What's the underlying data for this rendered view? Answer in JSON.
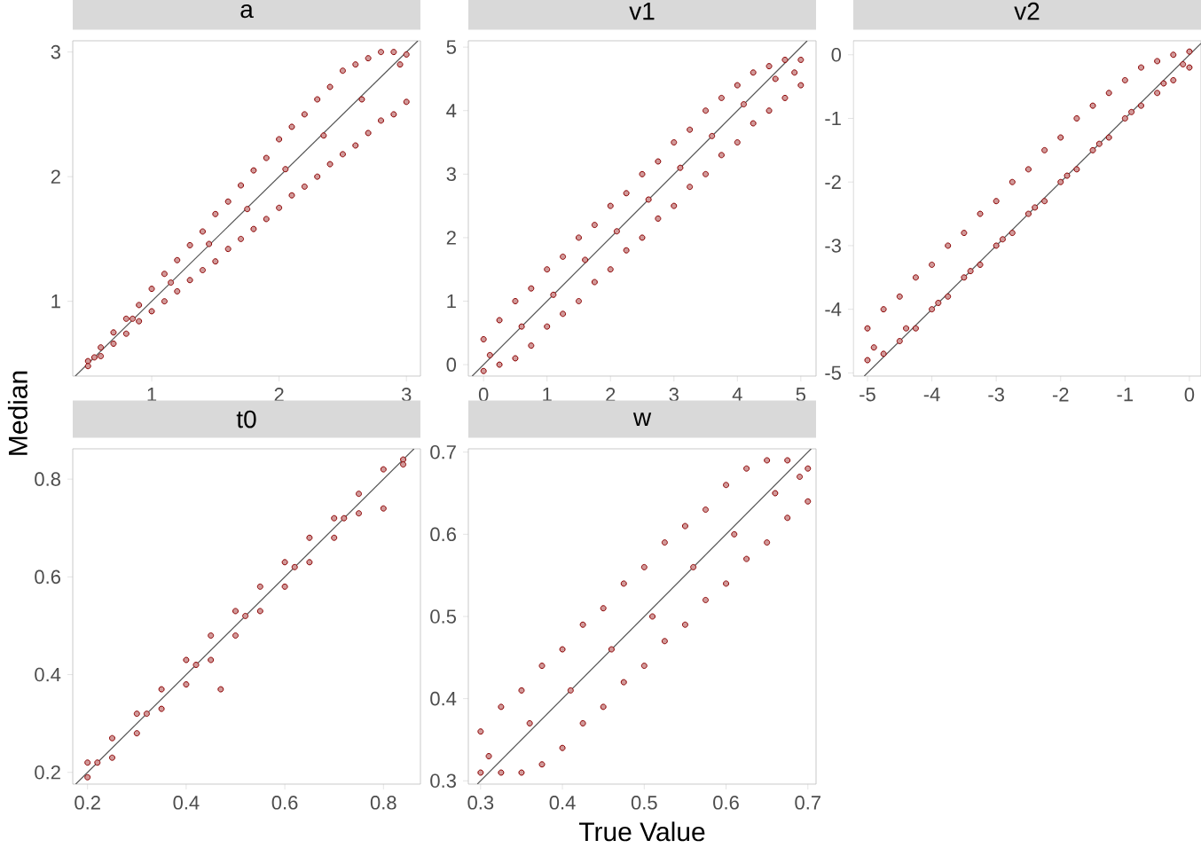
{
  "chart_data": [
    {
      "type": "scatter",
      "title": "a",
      "ylabel": "Median",
      "xlim": [
        0.38,
        3.11
      ],
      "ylim": [
        0.4,
        3.09
      ],
      "xticks": [
        1,
        2,
        3
      ],
      "yticks": [
        1,
        2,
        3
      ],
      "series": [
        {
          "type": "scatter",
          "marker": "circle",
          "color": "#8b0000",
          "x": [
            0.5,
            0.6,
            0.7,
            0.8,
            0.9,
            1.0,
            1.1,
            1.2,
            1.3,
            1.4,
            1.5,
            1.6,
            1.7,
            1.8,
            1.9,
            2.0,
            2.1,
            2.2,
            2.3,
            2.4,
            2.5,
            2.6,
            2.7,
            2.8,
            2.9,
            3.0,
            0.5,
            0.6,
            0.7,
            0.8,
            0.9,
            1.0,
            1.1,
            1.2,
            1.3,
            1.4,
            1.5,
            1.6,
            1.7,
            1.8,
            1.9,
            2.0,
            2.1,
            2.2,
            2.3,
            2.4,
            2.5,
            2.6,
            2.7,
            2.8,
            2.9,
            3.0,
            0.55,
            0.85,
            1.15,
            1.45,
            1.75,
            2.05,
            2.35,
            2.65,
            2.95
          ],
          "values": [
            0.52,
            0.63,
            0.75,
            0.86,
            0.97,
            1.1,
            1.22,
            1.33,
            1.45,
            1.56,
            1.7,
            1.8,
            1.93,
            2.05,
            2.15,
            2.3,
            2.4,
            2.5,
            2.62,
            2.72,
            2.85,
            2.9,
            2.95,
            3.0,
            3.0,
            2.98,
            0.48,
            0.56,
            0.66,
            0.74,
            0.84,
            0.92,
            1.0,
            1.08,
            1.17,
            1.25,
            1.32,
            1.42,
            1.5,
            1.58,
            1.66,
            1.75,
            1.85,
            1.92,
            2.0,
            2.1,
            2.18,
            2.25,
            2.35,
            2.45,
            2.5,
            2.6,
            0.55,
            0.86,
            1.15,
            1.46,
            1.74,
            2.06,
            2.33,
            2.62,
            2.9
          ]
        },
        {
          "type": "line",
          "color": "#555555",
          "x": [
            0.4,
            3.09
          ],
          "values": [
            0.4,
            3.09
          ]
        }
      ]
    },
    {
      "type": "scatter",
      "title": "v1",
      "xlim": [
        -0.24,
        5.24
      ],
      "ylim": [
        -0.18,
        5.1
      ],
      "xticks": [
        0,
        1,
        2,
        3,
        4,
        5
      ],
      "yticks": [
        0,
        1,
        2,
        3,
        4,
        5
      ],
      "series": [
        {
          "type": "scatter",
          "marker": "circle",
          "color": "#8b0000",
          "x": [
            0,
            0.25,
            0.5,
            0.75,
            1,
            1.25,
            1.5,
            1.75,
            2,
            2.25,
            2.5,
            2.75,
            3,
            3.25,
            3.5,
            3.75,
            4,
            4.25,
            4.5,
            4.75,
            5,
            0,
            0.25,
            0.5,
            0.75,
            1,
            1.25,
            1.5,
            1.75,
            2,
            2.25,
            2.5,
            2.75,
            3,
            3.25,
            3.5,
            3.75,
            4,
            4.25,
            4.5,
            4.75,
            5,
            0.1,
            0.6,
            1.1,
            1.6,
            2.1,
            2.6,
            3.1,
            3.6,
            4.1,
            4.6,
            4.9
          ],
          "values": [
            0.4,
            0.7,
            1.0,
            1.2,
            1.5,
            1.7,
            2.0,
            2.2,
            2.5,
            2.7,
            3.0,
            3.2,
            3.5,
            3.7,
            4.0,
            4.2,
            4.4,
            4.6,
            4.7,
            4.8,
            4.8,
            -0.1,
            0.0,
            0.1,
            0.3,
            0.6,
            0.8,
            1.0,
            1.3,
            1.5,
            1.8,
            2.0,
            2.3,
            2.5,
            2.8,
            3.0,
            3.3,
            3.5,
            3.8,
            4.0,
            4.2,
            4.4,
            0.15,
            0.6,
            1.1,
            1.65,
            2.1,
            2.6,
            3.1,
            3.6,
            4.1,
            4.5,
            4.6
          ]
        },
        {
          "type": "line",
          "color": "#555555",
          "x": [
            -0.18,
            5.1
          ],
          "values": [
            -0.18,
            5.1
          ]
        }
      ]
    },
    {
      "type": "scatter",
      "title": "v2",
      "xlim": [
        -5.22,
        0.18
      ],
      "ylim": [
        -5.05,
        0.22
      ],
      "xticks": [
        -5,
        -4,
        -3,
        -2,
        -1,
        0
      ],
      "yticks": [
        -5,
        -4,
        -3,
        -2,
        -1,
        0
      ],
      "series": [
        {
          "type": "scatter",
          "marker": "circle",
          "color": "#8b0000",
          "x": [
            -5,
            -4.75,
            -4.5,
            -4.25,
            -4,
            -3.75,
            -3.5,
            -3.25,
            -3,
            -2.75,
            -2.5,
            -2.25,
            -2,
            -1.75,
            -1.5,
            -1.25,
            -1,
            -0.75,
            -0.5,
            -0.25,
            0,
            -5,
            -4.75,
            -4.5,
            -4.25,
            -4,
            -3.75,
            -3.5,
            -3.25,
            -3,
            -2.75,
            -2.5,
            -2.25,
            -2,
            -1.75,
            -1.5,
            -1.25,
            -1,
            -0.75,
            -0.5,
            -0.25,
            0,
            -4.9,
            -4.4,
            -3.9,
            -3.4,
            -2.9,
            -2.4,
            -1.9,
            -1.4,
            -0.9,
            -0.4,
            -0.1
          ],
          "values": [
            -4.3,
            -4.0,
            -3.8,
            -3.5,
            -3.3,
            -3.0,
            -2.8,
            -2.5,
            -2.3,
            -2.0,
            -1.8,
            -1.5,
            -1.3,
            -1.0,
            -0.8,
            -0.6,
            -0.4,
            -0.2,
            -0.1,
            0.0,
            0.05,
            -4.8,
            -4.7,
            -4.5,
            -4.3,
            -4.0,
            -3.8,
            -3.5,
            -3.3,
            -3.0,
            -2.8,
            -2.5,
            -2.3,
            -2.0,
            -1.8,
            -1.5,
            -1.3,
            -1.0,
            -0.8,
            -0.6,
            -0.4,
            -0.2,
            -4.6,
            -4.3,
            -3.9,
            -3.4,
            -2.9,
            -2.4,
            -1.9,
            -1.4,
            -0.9,
            -0.45,
            -0.15
          ]
        },
        {
          "type": "line",
          "color": "#555555",
          "x": [
            -5.05,
            0.18
          ],
          "values": [
            -5.05,
            0.18
          ]
        }
      ]
    },
    {
      "type": "scatter",
      "title": "t0",
      "xlim": [
        0.17,
        0.875
      ],
      "ylim": [
        0.176,
        0.862
      ],
      "xticks": [
        0.2,
        0.4,
        0.6,
        0.8
      ],
      "yticks": [
        0.2,
        0.4,
        0.6,
        0.8
      ],
      "series": [
        {
          "type": "scatter",
          "marker": "circle",
          "color": "#8b0000",
          "x": [
            0.2,
            0.25,
            0.3,
            0.35,
            0.4,
            0.45,
            0.5,
            0.55,
            0.6,
            0.65,
            0.7,
            0.75,
            0.8,
            0.84,
            0.2,
            0.25,
            0.3,
            0.35,
            0.4,
            0.45,
            0.5,
            0.55,
            0.6,
            0.65,
            0.7,
            0.75,
            0.8,
            0.84,
            0.22,
            0.32,
            0.42,
            0.52,
            0.62,
            0.72,
            0.47
          ],
          "values": [
            0.22,
            0.27,
            0.32,
            0.37,
            0.43,
            0.48,
            0.53,
            0.58,
            0.63,
            0.68,
            0.72,
            0.77,
            0.82,
            0.84,
            0.19,
            0.23,
            0.28,
            0.33,
            0.38,
            0.43,
            0.48,
            0.53,
            0.58,
            0.63,
            0.68,
            0.73,
            0.74,
            0.83,
            0.22,
            0.32,
            0.42,
            0.52,
            0.62,
            0.72,
            0.37
          ]
        },
        {
          "type": "line",
          "color": "#555555",
          "x": [
            0.176,
            0.862
          ],
          "values": [
            0.176,
            0.862
          ]
        }
      ]
    },
    {
      "type": "scatter",
      "title": "w",
      "xlabel": "True Value",
      "xlim": [
        0.285,
        0.71
      ],
      "ylim": [
        0.296,
        0.704
      ],
      "xticks": [
        0.3,
        0.4,
        0.5,
        0.6,
        0.7
      ],
      "yticks": [
        0.3,
        0.4,
        0.5,
        0.6,
        0.7
      ],
      "series": [
        {
          "type": "scatter",
          "marker": "circle",
          "color": "#8b0000",
          "x": [
            0.3,
            0.325,
            0.35,
            0.375,
            0.4,
            0.425,
            0.45,
            0.475,
            0.5,
            0.525,
            0.55,
            0.575,
            0.6,
            0.625,
            0.65,
            0.675,
            0.7,
            0.3,
            0.325,
            0.35,
            0.375,
            0.4,
            0.425,
            0.45,
            0.475,
            0.5,
            0.525,
            0.55,
            0.575,
            0.6,
            0.625,
            0.65,
            0.675,
            0.7,
            0.31,
            0.36,
            0.41,
            0.46,
            0.51,
            0.56,
            0.61,
            0.66,
            0.69
          ],
          "values": [
            0.36,
            0.39,
            0.41,
            0.44,
            0.46,
            0.49,
            0.51,
            0.54,
            0.56,
            0.59,
            0.61,
            0.63,
            0.66,
            0.68,
            0.69,
            0.69,
            0.68,
            0.31,
            0.31,
            0.31,
            0.32,
            0.34,
            0.37,
            0.39,
            0.42,
            0.44,
            0.47,
            0.49,
            0.52,
            0.54,
            0.57,
            0.59,
            0.62,
            0.64,
            0.33,
            0.37,
            0.41,
            0.46,
            0.5,
            0.56,
            0.6,
            0.65,
            0.67
          ]
        },
        {
          "type": "line",
          "color": "#555555",
          "x": [
            0.296,
            0.704
          ],
          "values": [
            0.296,
            0.704
          ]
        }
      ]
    }
  ]
}
